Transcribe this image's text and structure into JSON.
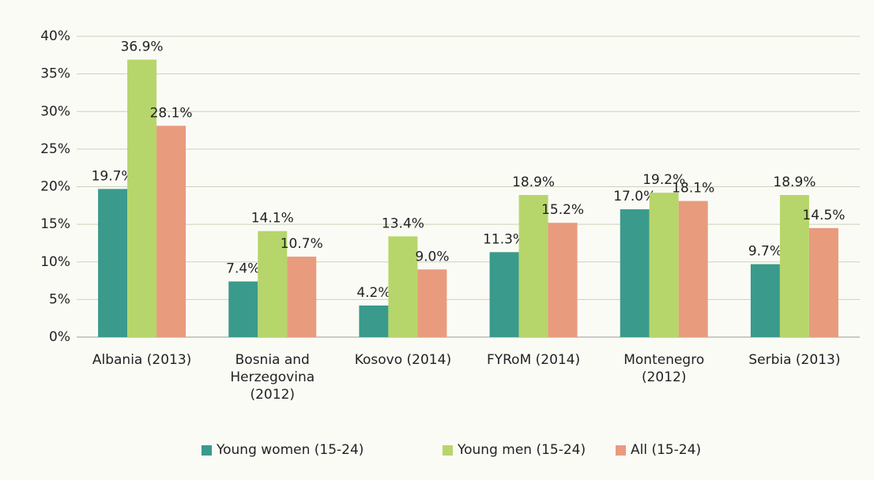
{
  "chart_data": {
    "type": "bar",
    "categories": [
      "Albania (2013)",
      "Bosnia and Herzegovina (2012)",
      "Kosovo (2014)",
      "FYRoM (2014)",
      "Montenegro (2012)",
      "Serbia (2013)"
    ],
    "series": [
      {
        "name": "Young women (15-24)",
        "color": "#3a9a8b",
        "values": [
          19.7,
          7.4,
          4.2,
          11.3,
          17.0,
          9.7
        ],
        "value_labels": [
          "19.7%",
          "7.4%",
          "4.2%",
          "11.3%",
          "17.0%",
          "9.7%"
        ]
      },
      {
        "name": "Young men (15-24)",
        "color": "#b6d66b",
        "values": [
          36.9,
          14.1,
          13.4,
          18.9,
          19.2,
          18.9
        ],
        "value_labels": [
          "36.9%",
          "14.1%",
          "13.4%",
          "18.9%",
          "19.2%",
          "18.9%"
        ]
      },
      {
        "name": "All (15-24)",
        "color": "#e99b7e",
        "values": [
          28.1,
          10.7,
          9.0,
          15.2,
          18.1,
          14.5
        ],
        "value_labels": [
          "28.1%",
          "10.7%",
          "9.0%",
          "15.2%",
          "18.1%",
          "14.5%"
        ]
      }
    ],
    "ylim": [
      0,
      40
    ],
    "yticks": [
      {
        "value": 0,
        "label": "0%"
      },
      {
        "value": 5,
        "label": "5%"
      },
      {
        "value": 10,
        "label": "10%"
      },
      {
        "value": 15,
        "label": "15%"
      },
      {
        "value": 20,
        "label": "20%"
      },
      {
        "value": 25,
        "label": "25%"
      },
      {
        "value": 30,
        "label": "30%"
      },
      {
        "value": 35,
        "label": "35%"
      },
      {
        "value": 40,
        "label": "40%"
      }
    ],
    "grid": true,
    "legend": "bottom"
  }
}
